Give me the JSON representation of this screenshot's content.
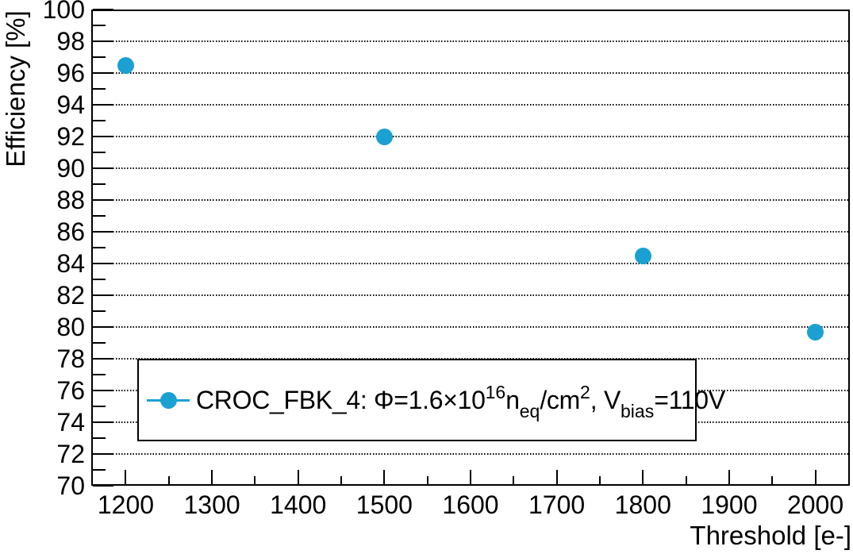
{
  "figure": {
    "background": "#ffffff",
    "frame_color": "#000000",
    "grid_color": "#000000"
  },
  "chart_data": {
    "type": "scatter",
    "title": "",
    "xlabel": "Threshold [e-]",
    "ylabel": "Efficiency [%]",
    "xlim": [
      1160,
      2040
    ],
    "ylim": [
      70,
      100
    ],
    "x_major_ticks": [
      1200,
      1300,
      1400,
      1500,
      1600,
      1700,
      1800,
      1900,
      2000
    ],
    "x_minor_step": 50,
    "y_major_ticks": [
      70,
      72,
      74,
      76,
      78,
      80,
      82,
      84,
      86,
      88,
      90,
      92,
      94,
      96,
      98,
      100
    ],
    "y_minor_step": 1,
    "grid": "horizontal-dotted",
    "legend_position": "bottom-left-inside",
    "series": [
      {
        "name": "CROC_FBK_4: Φ=1.6×10¹⁶n_eq/cm², V_bias=110V",
        "marker": "filled-circle",
        "color": "#1BA0D2",
        "points": [
          {
            "x": 1200,
            "y": 96.5
          },
          {
            "x": 1500,
            "y": 92.0
          },
          {
            "x": 1800,
            "y": 84.5
          },
          {
            "x": 2000,
            "y": 79.7
          }
        ]
      }
    ],
    "legend": {
      "border_color": "#000000",
      "background": "#ffffff",
      "entries": [
        {
          "marker_color": "#1BA0D2",
          "label_plain": "CROC_FBK_4: Φ=1.6×10¹⁶n_eq/cm², V_bias=110V",
          "label_segments": [
            {
              "text": "CROC_FBK_4: Φ=1.6×10",
              "style": "normal"
            },
            {
              "text": "16",
              "style": "sup"
            },
            {
              "text": "n",
              "style": "normal"
            },
            {
              "text": "eq",
              "style": "sub"
            },
            {
              "text": "/cm",
              "style": "normal"
            },
            {
              "text": "2",
              "style": "sup"
            },
            {
              "text": ", V",
              "style": "normal"
            },
            {
              "text": "bias",
              "style": "sub"
            },
            {
              "text": "=110V",
              "style": "normal"
            }
          ]
        }
      ]
    }
  }
}
